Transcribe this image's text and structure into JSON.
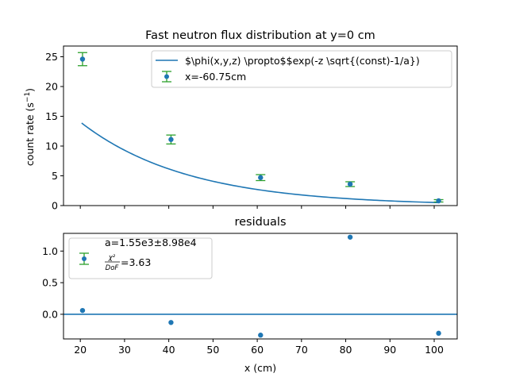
{
  "chart_data": [
    {
      "type": "scatter",
      "title": "Fast neutron flux distribution at y=0 cm",
      "xlabel": "",
      "ylabel_main": "count rate (s",
      "ylabel_sup": "−1",
      "ylabel_end": ")",
      "xlim": [
        16.2,
        105.2
      ],
      "ylim": [
        0,
        26.8
      ],
      "xticks": [
        20,
        30,
        40,
        50,
        60,
        70,
        80,
        90,
        100
      ],
      "yticks": [
        0,
        5,
        10,
        15,
        20,
        25
      ],
      "ytick_labels": [
        "0",
        "5",
        "10",
        "15",
        "20",
        "25"
      ],
      "legend_position": "top-right",
      "series": [
        {
          "name": "$\\phi(x,y,z) \\propto$$exp(-z \\sqrt{(const)-1/a})",
          "kind": "fit-line",
          "color": "#1f77b4",
          "model": {
            "A": 32.0,
            "k": 0.0412,
            "x_start": 20.3,
            "x_end": 101.2
          }
        },
        {
          "name": "x=-60.75cm",
          "kind": "errorbar-points",
          "marker_color": "#1f77b4",
          "errorbar_color": "#2ca02c",
          "x": [
            20.5,
            40.5,
            60.75,
            81.0,
            101.0
          ],
          "y": [
            24.6,
            11.1,
            4.7,
            3.6,
            0.8
          ],
          "yerr": [
            1.1,
            0.75,
            0.5,
            0.4,
            0.2
          ]
        }
      ]
    },
    {
      "type": "scatter",
      "title": "residuals",
      "xlabel": "x (cm)",
      "ylabel": "",
      "xlim": [
        16.2,
        105.2
      ],
      "ylim": [
        -0.39,
        1.28
      ],
      "xticks": [
        20,
        30,
        40,
        50,
        60,
        70,
        80,
        90,
        100
      ],
      "xtick_labels": [
        "20",
        "30",
        "40",
        "50",
        "60",
        "70",
        "80",
        "90",
        "100"
      ],
      "yticks": [
        0.0,
        0.5,
        1.0
      ],
      "ytick_labels": [
        "0.0",
        "0.5",
        "1.0"
      ],
      "zero_line": 0,
      "legend_position": "top-left",
      "legend_line1": "a=1.55e3±8.98e4",
      "legend_chi": "χ²",
      "legend_dof": "DoF",
      "legend_value": "=3.63",
      "series": [
        {
          "kind": "points",
          "color": "#1f77b4",
          "x": [
            20.5,
            40.5,
            60.75,
            81.0,
            101.0
          ],
          "y": [
            0.06,
            -0.13,
            -0.33,
            1.22,
            -0.3
          ]
        }
      ]
    }
  ]
}
